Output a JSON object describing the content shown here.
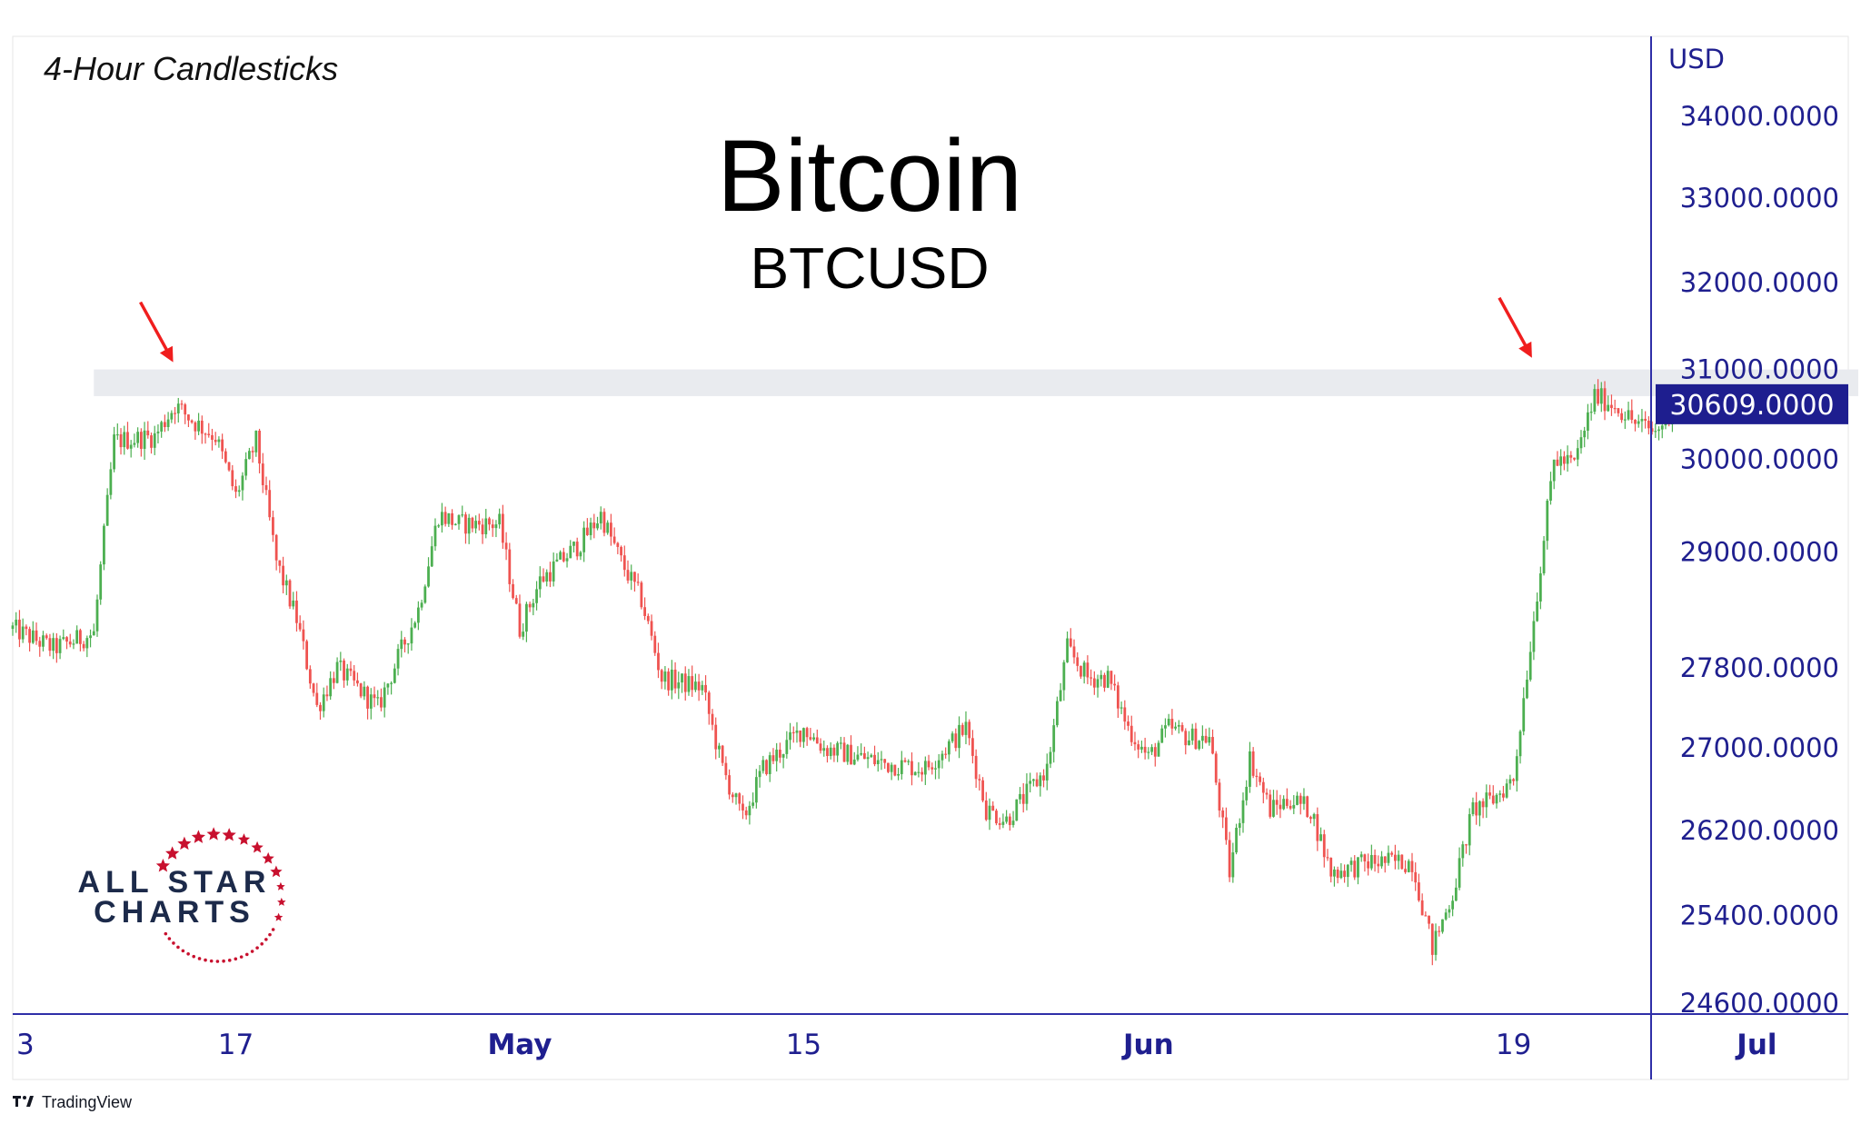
{
  "chart_data": {
    "type": "candlestick",
    "title": "Bitcoin",
    "subtitle": "BTCUSD",
    "corner_label": "4-Hour Candlesticks",
    "currency_label": "USD",
    "last_price_label": "30609.0000",
    "last_price": 30609,
    "y_axis": {
      "scale": "log",
      "ticks": [
        {
          "value": 34000,
          "label": "34000.0000"
        },
        {
          "value": 33000,
          "label": "33000.0000"
        },
        {
          "value": 32000,
          "label": "32000.0000"
        },
        {
          "value": 31000,
          "label": "31000.0000"
        },
        {
          "value": 30000,
          "label": "30000.0000"
        },
        {
          "value": 29000,
          "label": "29000.0000"
        },
        {
          "value": 27800,
          "label": "27800.0000"
        },
        {
          "value": 27000,
          "label": "27000.0000"
        },
        {
          "value": 26200,
          "label": "26200.0000"
        },
        {
          "value": 25400,
          "label": "25400.0000"
        },
        {
          "value": 24600,
          "label": "24600.0000"
        }
      ]
    },
    "x_axis": {
      "start": "2023-04-06",
      "end": "2023-07-06",
      "ticks": [
        {
          "date": "2023-04-03",
          "label": "3",
          "bold": false
        },
        {
          "date": "2023-04-17",
          "label": "17",
          "bold": false
        },
        {
          "date": "2023-05-01",
          "label": "May",
          "bold": true
        },
        {
          "date": "2023-05-15",
          "label": "15",
          "bold": false
        },
        {
          "date": "2023-06-01",
          "label": "Jun",
          "bold": true
        },
        {
          "date": "2023-06-19",
          "label": "19",
          "bold": false
        },
        {
          "date": "2023-07-01",
          "label": "Jul",
          "bold": true
        }
      ]
    },
    "resistance_zone": {
      "from": "2023-04-10",
      "to": "2023-07-06",
      "low": 30700,
      "high": 31000
    },
    "arrows": [
      {
        "date": "2023-04-14",
        "price": 31000
      },
      {
        "date": "2023-06-20",
        "price": 31050
      }
    ],
    "anchors": [
      [
        "2023-04-06",
        28200
      ],
      [
        "2023-04-08",
        28000
      ],
      [
        "2023-04-10",
        28150
      ],
      [
        "2023-04-11",
        30200
      ],
      [
        "2023-04-13",
        30250
      ],
      [
        "2023-04-14",
        30600
      ],
      [
        "2023-04-15",
        30400
      ],
      [
        "2023-04-16",
        30250
      ],
      [
        "2023-04-17",
        29600
      ],
      [
        "2023-04-18",
        30200
      ],
      [
        "2023-04-19",
        28900
      ],
      [
        "2023-04-20",
        28300
      ],
      [
        "2023-04-21",
        27400
      ],
      [
        "2023-04-22",
        27800
      ],
      [
        "2023-04-24",
        27400
      ],
      [
        "2023-04-26",
        28400
      ],
      [
        "2023-04-27",
        29400
      ],
      [
        "2023-04-28",
        29300
      ],
      [
        "2023-04-30",
        29300
      ],
      [
        "2023-05-01",
        28200
      ],
      [
        "2023-05-02",
        28700
      ],
      [
        "2023-05-04",
        29100
      ],
      [
        "2023-05-05",
        29400
      ],
      [
        "2023-05-06",
        28900
      ],
      [
        "2023-05-07",
        28500
      ],
      [
        "2023-05-08",
        27700
      ],
      [
        "2023-05-10",
        27600
      ],
      [
        "2023-05-11",
        26800
      ],
      [
        "2023-05-12",
        26300
      ],
      [
        "2023-05-13",
        26800
      ],
      [
        "2023-05-15",
        27200
      ],
      [
        "2023-05-16",
        27000
      ],
      [
        "2023-05-18",
        26900
      ],
      [
        "2023-05-19",
        26850
      ],
      [
        "2023-05-21",
        26800
      ],
      [
        "2023-05-23",
        27200
      ],
      [
        "2023-05-24",
        26400
      ],
      [
        "2023-05-25",
        26300
      ],
      [
        "2023-05-27",
        26800
      ],
      [
        "2023-05-28",
        28000
      ],
      [
        "2023-05-29",
        27700
      ],
      [
        "2023-05-30",
        27700
      ],
      [
        "2023-05-31",
        27200
      ],
      [
        "2023-06-01",
        26900
      ],
      [
        "2023-06-02",
        27200
      ],
      [
        "2023-06-03",
        27100
      ],
      [
        "2023-06-04",
        27100
      ],
      [
        "2023-06-05",
        25800
      ],
      [
        "2023-06-06",
        26900
      ],
      [
        "2023-06-07",
        26400
      ],
      [
        "2023-06-08",
        26500
      ],
      [
        "2023-06-09",
        26400
      ],
      [
        "2023-06-10",
        25800
      ],
      [
        "2023-06-12",
        25900
      ],
      [
        "2023-06-14",
        25900
      ],
      [
        "2023-06-15",
        25100
      ],
      [
        "2023-06-16",
        25600
      ],
      [
        "2023-06-17",
        26400
      ],
      [
        "2023-06-18",
        26500
      ],
      [
        "2023-06-19",
        26700
      ],
      [
        "2023-06-20",
        28300
      ],
      [
        "2023-06-21",
        30000
      ],
      [
        "2023-06-22",
        29950
      ],
      [
        "2023-06-23",
        30700
      ],
      [
        "2023-06-24",
        30600
      ],
      [
        "2023-06-25",
        30400
      ],
      [
        "2023-06-26",
        30300
      ],
      [
        "2023-06-27",
        30609
      ]
    ]
  },
  "logo": {
    "line1": "ALL STAR",
    "line2": "CHARTS"
  },
  "footer": {
    "brand": "TradingView"
  },
  "colors": {
    "up": "#4caf50",
    "down": "#ef5350",
    "axis": "#2f2fa8",
    "axis_text": "#1f1f8f",
    "zone": "#e9ebef",
    "arrow": "#f01e1e",
    "logo_navy": "#1c2a4a",
    "logo_red": "#c8102e",
    "price_tag_bg": "#1e1e8f",
    "price_tag_text": "#ffffff"
  }
}
